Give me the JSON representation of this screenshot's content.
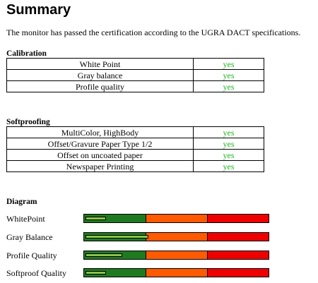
{
  "title": "Summary",
  "intro": "The monitor has passed the certification according to the UGRA DACT specifications.",
  "calibration": {
    "heading": "Calibration",
    "rows": [
      {
        "label": "White Point",
        "value": "yes"
      },
      {
        "label": "Gray balance",
        "value": "yes"
      },
      {
        "label": "Profile quality",
        "value": "yes"
      }
    ]
  },
  "softproofing": {
    "heading": "Softproofing",
    "rows": [
      {
        "label": "MultiColor, HighBody",
        "value": "yes"
      },
      {
        "label": "Offset/Gravure Paper Type 1/2",
        "value": "yes"
      },
      {
        "label": "Offset on uncoated paper",
        "value": "yes"
      },
      {
        "label": "Newspaper Printing",
        "value": "yes"
      }
    ]
  },
  "diagram": {
    "heading": "Diagram",
    "zone_colors": {
      "good": "#1f7a1f",
      "warning": "#ff5a00",
      "bad": "#ee0000"
    },
    "level_color": "#8bc34a",
    "rows": [
      {
        "label": "WhitePoint",
        "level": 0.11
      },
      {
        "label": "Gray Balance",
        "level": 0.34
      },
      {
        "label": "Profile Quality",
        "level": 0.2
      },
      {
        "label": "Softproof Quality",
        "level": 0.11
      }
    ]
  }
}
